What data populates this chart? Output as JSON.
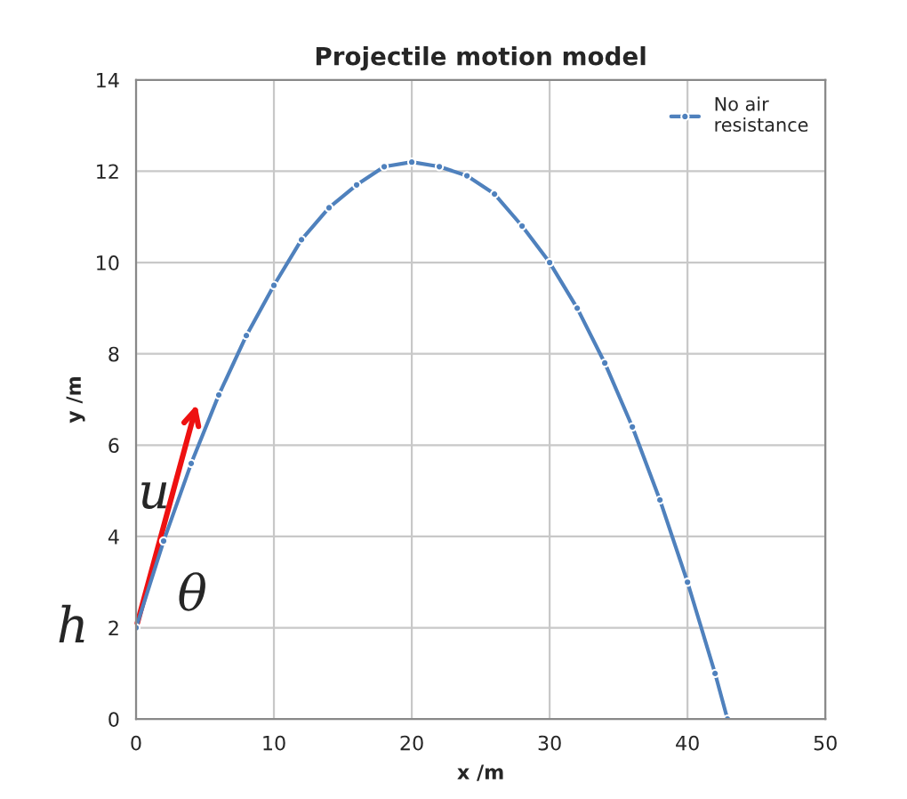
{
  "chart_data": {
    "type": "line",
    "title": "Projectile motion model",
    "xlabel": "x /m",
    "ylabel": "y /m",
    "x": [
      0,
      2,
      4,
      6,
      8,
      10,
      12,
      14,
      16,
      18,
      20,
      22,
      24,
      26,
      28,
      30,
      32,
      34,
      36,
      38,
      40,
      42,
      42.9
    ],
    "series": [
      {
        "name": "No air\nresistance",
        "color": "#4f81bd",
        "values": [
          2,
          3.9,
          5.6,
          7.1,
          8.4,
          9.5,
          10.5,
          11.2,
          11.7,
          12.1,
          12.2,
          12.1,
          11.9,
          11.5,
          10.8,
          10.0,
          9.0,
          7.8,
          6.4,
          4.8,
          3.0,
          1.0,
          0
        ]
      }
    ],
    "annotations": [
      "u",
      "θ",
      "h"
    ],
    "xlim": [
      0,
      50
    ],
    "xticks": [
      0,
      10,
      20,
      30,
      40,
      50
    ],
    "ylim": [
      0,
      14
    ],
    "yticks": [
      0,
      2,
      4,
      6,
      8,
      10,
      12,
      14
    ],
    "grid": true,
    "legend": "top right",
    "marker": "circle",
    "line_style": "solid"
  }
}
